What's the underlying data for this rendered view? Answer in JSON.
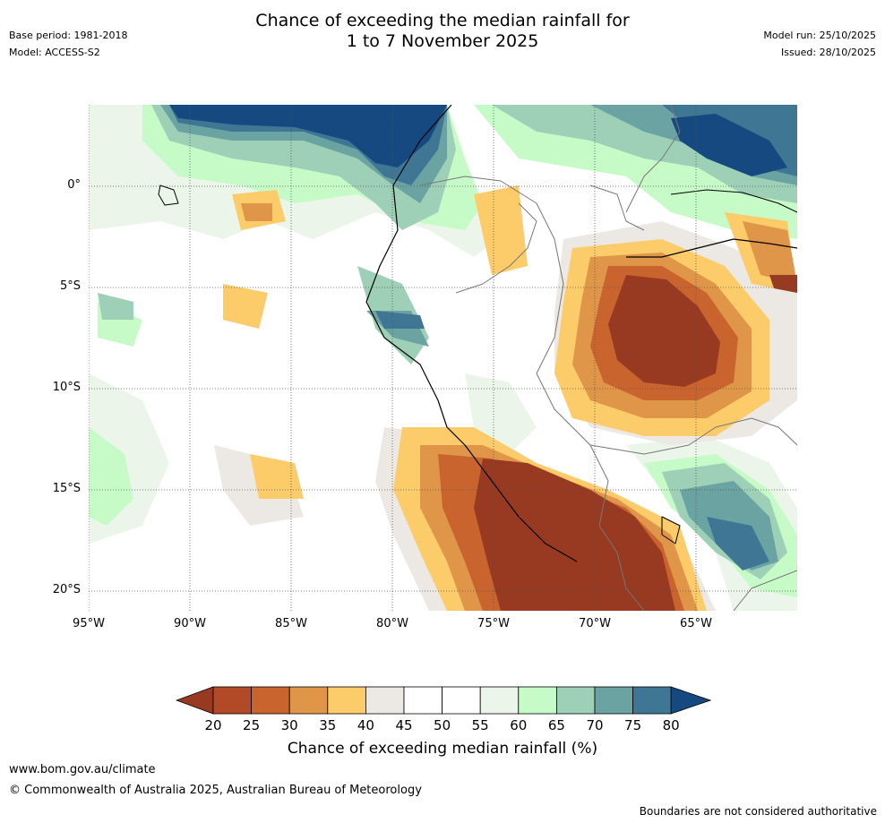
{
  "title": {
    "line1": "Chance of exceeding the median rainfall for",
    "line2": "1 to 7 November 2025"
  },
  "meta": {
    "base_period": "Base period: 1981-2018",
    "model": "Model: ACCESS-S2",
    "model_run": "Model run: 25/10/2025",
    "issued": "Issued: 28/10/2025"
  },
  "map": {
    "lat_labels": [
      "0°",
      "5°S",
      "10°S",
      "15°S",
      "20°S"
    ],
    "lon_labels": [
      "95°W",
      "90°W",
      "85°W",
      "80°W",
      "75°W",
      "70°W",
      "65°W"
    ]
  },
  "legend": {
    "ticks": [
      "20",
      "25",
      "30",
      "35",
      "40",
      "45",
      "50",
      "55",
      "60",
      "65",
      "70",
      "75",
      "80"
    ],
    "colors": [
      "#983a22",
      "#b34a27",
      "#c9642f",
      "#e09648",
      "#fccb6a",
      "#ece9e5",
      "#ffffff",
      "#ffffff",
      "#ebf5ea",
      "#c6fbc8",
      "#9ed0b8",
      "#6ba3a2",
      "#3f7694",
      "#15497f"
    ],
    "title": "Chance of exceeding median rainfall (%)"
  },
  "footer": {
    "url": "www.bom.gov.au/climate",
    "copyright": "© Commonwealth of Australia 2025, Australian Bureau of Meteorology",
    "disclaimer": "Boundaries are not considered authoritative"
  }
}
